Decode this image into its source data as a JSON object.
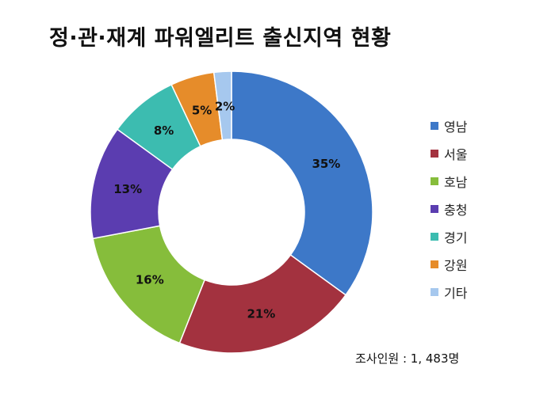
{
  "chart_data": {
    "type": "pie",
    "title": "정·관·재계 파워엘리트 출신지역 현황",
    "categories": [
      "영남",
      "서울",
      "호남",
      "충청",
      "경기",
      "강원",
      "기타"
    ],
    "values": [
      35,
      21,
      16,
      13,
      8,
      5,
      2
    ],
    "data_labels": [
      "35%",
      "21%",
      "16%",
      "13%",
      "8%",
      "5%",
      "2%"
    ],
    "colors": [
      "#3d78c8",
      "#a3323f",
      "#86bd3b",
      "#5b3db0",
      "#3cbcb0",
      "#e68c2a",
      "#a6c8ee"
    ],
    "donut": true,
    "start": "top, clockwise",
    "legend_position": "right",
    "annotation": "조사인원 : 1, 483명"
  }
}
